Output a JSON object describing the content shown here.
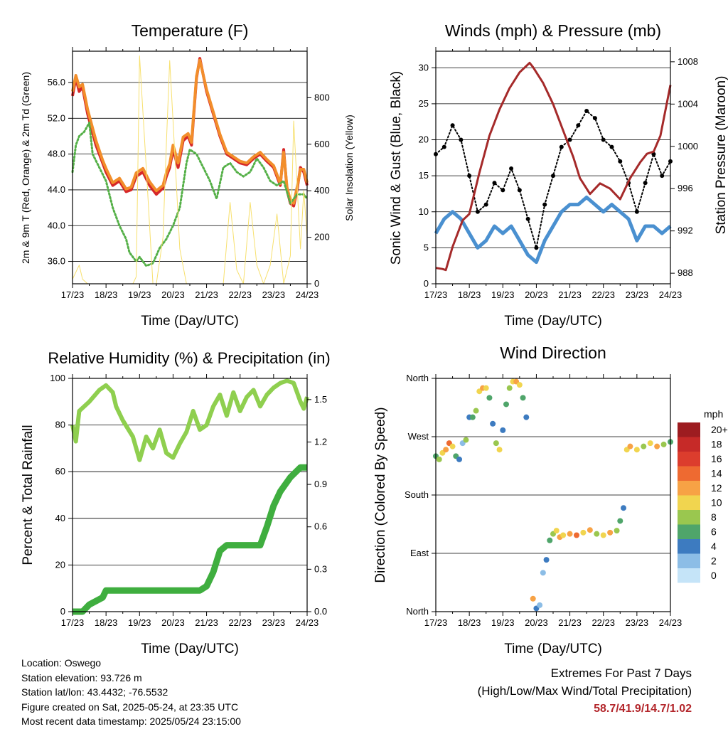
{
  "panels": {
    "temperature": {
      "title": "Temperature (F)",
      "ylabel_left": "2m & 9m T (Red, Orange) & 2m Td (Green)",
      "ylabel_right": "Solar Insolation (Yellow)",
      "xlabel": "Time (Day/UTC)"
    },
    "winds": {
      "title": "Winds (mph) & Pressure (mb)",
      "ylabel_left": "Sonic Wind & Gust (Blue, Black)",
      "ylabel_right": "Station Pressure (Maroon)",
      "xlabel": "Time (Day/UTC)"
    },
    "humidity": {
      "title": "Relative Humidity (%) & Precipitation (in)",
      "ylabel_left": "Percent & Total Rainfall",
      "xlabel": "Time (Day/UTC)"
    },
    "direction": {
      "title": "Wind Direction",
      "ylabel_left": "Direction (Colored By Speed)",
      "xlabel": "Time (Day/UTC)",
      "colorbar_title": "mph",
      "colorbar_labels": [
        "20+",
        "18",
        "16",
        "14",
        "12",
        "10",
        "8",
        "6",
        "4",
        "2",
        "0"
      ],
      "colorbar_colors": [
        "#9d1c20",
        "#c62a28",
        "#dc3d2d",
        "#ee6a31",
        "#f7a245",
        "#f1d54f",
        "#9ac74f",
        "#4fa56a",
        "#3d7bc0",
        "#8cbde6",
        "#c5e4f8"
      ]
    }
  },
  "info": {
    "location": "Location: Oswego",
    "elevation": "Station elevation: 93.726 m",
    "latlon": "Station lat/lon: 43.4432; -76.5532",
    "created": "Figure created on Sat, 2025-05-24, at 23:35 UTC",
    "recent": "Most recent data timestamp: 2025/05/24 23:15:00"
  },
  "extremes": {
    "title": "Extremes For Past 7 Days",
    "subtitle": "(High/Low/Max Wind/Total Precipitation)",
    "values": "58.7/41.9/14.7/1.02"
  },
  "chart_data": [
    {
      "type": "line",
      "title": "Temperature (F)",
      "xlabel": "Time (Day/UTC)",
      "x_ticks": [
        "17/23",
        "18/23",
        "19/23",
        "20/23",
        "21/23",
        "22/23",
        "23/23",
        "24/23"
      ],
      "xlim": [
        0,
        7
      ],
      "ylim": [
        33.5,
        59.5
      ],
      "y_ticks": [
        "36.0",
        "40.0",
        "44.0",
        "48.0",
        "52.0",
        "56.0"
      ],
      "y2lim": [
        0,
        1000
      ],
      "y2_ticks": [
        "0",
        "200",
        "400",
        "600",
        "800"
      ],
      "grid": "horizontal",
      "series": [
        {
          "color": "#d62728",
          "axis": "left",
          "x": [
            0,
            0.1,
            0.2,
            0.3,
            0.45,
            0.7,
            0.9,
            1.0,
            1.2,
            1.4,
            1.6,
            1.75,
            1.9,
            2.1,
            2.3,
            2.5,
            2.7,
            2.8,
            2.9,
            3.0,
            3.15,
            3.3,
            3.45,
            3.55,
            3.6,
            3.7,
            3.8,
            4.0,
            4.2,
            4.4,
            4.6,
            4.8,
            5.0,
            5.2,
            5.4,
            5.6,
            5.8,
            6.0,
            6.2,
            6.3,
            6.4,
            6.5,
            6.6,
            6.7,
            6.8,
            6.9,
            7.0
          ],
          "y": [
            54.5,
            56.5,
            55.0,
            55.5,
            52.5,
            49.0,
            47.0,
            46.0,
            44.5,
            45.0,
            43.8,
            44.0,
            45.5,
            46.0,
            44.5,
            43.5,
            44.2,
            45.5,
            46.5,
            48.5,
            46.5,
            49.5,
            50.0,
            49.0,
            51.5,
            56.5,
            58.7,
            55.0,
            52.5,
            50.0,
            48.0,
            47.5,
            47.0,
            46.8,
            47.5,
            48.0,
            47.2,
            46.5,
            44.5,
            48.5,
            44.0,
            42.5,
            42.2,
            44.0,
            46.5,
            46.0,
            44.5
          ]
        },
        {
          "color": "#f28e2b",
          "axis": "left",
          "x": [
            0,
            0.1,
            0.2,
            0.3,
            0.45,
            0.7,
            0.9,
            1.0,
            1.2,
            1.4,
            1.6,
            1.75,
            1.9,
            2.1,
            2.3,
            2.5,
            2.7,
            2.8,
            2.9,
            3.0,
            3.15,
            3.3,
            3.45,
            3.55,
            3.6,
            3.7,
            3.8,
            4.0,
            4.2,
            4.4,
            4.6,
            4.8,
            5.0,
            5.2,
            5.4,
            5.6,
            5.8,
            6.0,
            6.2,
            6.3,
            6.4,
            6.5,
            6.6,
            6.7,
            6.8,
            6.9,
            7.0
          ],
          "y": [
            55.0,
            56.8,
            55.5,
            55.8,
            53.0,
            49.5,
            47.3,
            46.4,
            44.8,
            45.3,
            44.1,
            44.3,
            45.9,
            46.4,
            44.9,
            43.9,
            44.5,
            45.9,
            46.9,
            49.0,
            47.0,
            49.9,
            50.3,
            49.3,
            51.8,
            56.7,
            58.5,
            55.2,
            52.7,
            50.2,
            48.2,
            47.7,
            47.2,
            47.0,
            47.7,
            48.2,
            47.4,
            46.7,
            44.7,
            48.2,
            44.3,
            42.8,
            42.5,
            44.3,
            46.3,
            46.3,
            44.8
          ]
        },
        {
          "color": "#55b048",
          "axis": "left",
          "x": [
            0,
            0.1,
            0.2,
            0.35,
            0.5,
            0.6,
            0.8,
            1.0,
            1.2,
            1.4,
            1.6,
            1.7,
            1.9,
            2.0,
            2.2,
            2.4,
            2.6,
            2.8,
            3.0,
            3.2,
            3.4,
            3.5,
            3.7,
            3.9,
            4.1,
            4.3,
            4.5,
            4.7,
            4.9,
            5.1,
            5.3,
            5.5,
            5.7,
            5.9,
            6.1,
            6.3,
            6.5,
            6.7,
            6.9,
            7.0
          ],
          "y": [
            46.0,
            49.0,
            50.0,
            50.5,
            51.5,
            48.0,
            46.5,
            45.0,
            42.0,
            40.0,
            38.5,
            37.0,
            36.0,
            36.5,
            35.5,
            35.8,
            37.5,
            38.5,
            40.0,
            42.0,
            47.0,
            48.5,
            48.0,
            46.5,
            45.0,
            43.0,
            46.5,
            47.0,
            46.0,
            45.5,
            46.0,
            47.5,
            46.5,
            45.0,
            44.5,
            45.0,
            42.5,
            43.5,
            43.5,
            43.0
          ]
        },
        {
          "color": "#f7e06e",
          "axis": "right",
          "x": [
            0,
            0.2,
            0.3,
            0.45,
            0.6,
            0.8,
            1.0,
            1.2,
            1.4,
            1.6,
            1.8,
            1.9,
            2.0,
            2.2,
            2.4,
            2.5,
            2.7,
            2.8,
            2.9,
            3.0,
            3.2,
            3.4,
            3.6,
            3.7,
            3.9,
            4.1,
            4.3,
            4.5,
            4.7,
            4.9,
            5.1,
            5.3,
            5.5,
            5.7,
            5.9,
            6.1,
            6.3,
            6.5,
            6.6,
            6.8,
            6.9,
            7.0
          ],
          "y": [
            20,
            80,
            20,
            0,
            0,
            0,
            0,
            0,
            0,
            0,
            0,
            30,
            980,
            500,
            0,
            0,
            200,
            600,
            960,
            700,
            150,
            0,
            0,
            0,
            0,
            0,
            0,
            0,
            350,
            60,
            0,
            350,
            80,
            0,
            80,
            300,
            0,
            120,
            700,
            150,
            400,
            200
          ]
        }
      ]
    },
    {
      "type": "line",
      "title": "Winds (mph) & Pressure (mb)",
      "xlabel": "Time (Day/UTC)",
      "x_ticks": [
        "17/23",
        "18/23",
        "19/23",
        "20/23",
        "21/23",
        "22/23",
        "23/23",
        "24/23"
      ],
      "xlim": [
        0,
        7
      ],
      "ylim": [
        0,
        32.3
      ],
      "y_ticks": [
        "0",
        "5",
        "10",
        "15",
        "20",
        "25",
        "30"
      ],
      "y2lim": [
        987,
        1009
      ],
      "y2_ticks": [
        "988",
        "992",
        "996",
        "1000",
        "1004",
        "1008"
      ],
      "grid": "horizontal",
      "series": [
        {
          "color": "#4a90d0",
          "axis": "left",
          "x": [
            0,
            0.25,
            0.5,
            0.75,
            1.0,
            1.25,
            1.5,
            1.75,
            2.0,
            2.25,
            2.5,
            2.75,
            3.0,
            3.25,
            3.5,
            3.75,
            4.0,
            4.25,
            4.5,
            4.75,
            5.0,
            5.25,
            5.5,
            5.75,
            6.0,
            6.25,
            6.5,
            6.75,
            7.0
          ],
          "y": [
            7,
            9,
            10,
            9,
            7,
            5,
            6,
            8,
            7,
            8,
            6,
            4,
            3,
            6,
            8,
            10,
            11,
            11,
            12,
            11,
            10,
            11,
            10,
            9,
            6,
            8,
            8,
            7,
            8
          ]
        },
        {
          "color": "#000000",
          "axis": "left",
          "x": [
            0,
            0.25,
            0.5,
            0.75,
            1.0,
            1.25,
            1.5,
            1.75,
            2.0,
            2.25,
            2.5,
            2.75,
            3.0,
            3.25,
            3.5,
            3.75,
            4.0,
            4.25,
            4.5,
            4.75,
            5.0,
            5.25,
            5.5,
            5.75,
            6.0,
            6.25,
            6.5,
            6.75,
            7.0
          ],
          "y": [
            18,
            19,
            22,
            20,
            15,
            10,
            11,
            14,
            13,
            16,
            13,
            9,
            5,
            11,
            15,
            19,
            20,
            22,
            24,
            23,
            20,
            19,
            17,
            14,
            10,
            14,
            18,
            15,
            17
          ]
        },
        {
          "color": "#a52a2a",
          "axis": "right",
          "x": [
            0,
            0.2,
            0.3,
            0.5,
            0.8,
            1.0,
            1.3,
            1.6,
            1.9,
            2.2,
            2.5,
            2.8,
            2.9,
            3.2,
            3.5,
            3.8,
            4.1,
            4.3,
            4.6,
            4.9,
            5.2,
            5.5,
            5.8,
            6.1,
            6.3,
            6.5,
            6.7,
            7.0
          ],
          "y": [
            988.5,
            988.4,
            988.3,
            990.5,
            993.0,
            993.6,
            997.5,
            1001.0,
            1003.5,
            1005.5,
            1007.0,
            1007.9,
            1007.5,
            1006.0,
            1004.0,
            1001.5,
            999.0,
            997.0,
            995.5,
            996.5,
            996.0,
            995.0,
            997.0,
            998.5,
            999.3,
            999.5,
            1001.0,
            1005.8
          ]
        }
      ]
    },
    {
      "type": "line",
      "title": "Relative Humidity (%) & Precipitation (in)",
      "xlabel": "Time (Day/UTC)",
      "x_ticks": [
        "17/23",
        "18/23",
        "19/23",
        "20/23",
        "21/23",
        "22/23",
        "23/23",
        "24/23"
      ],
      "xlim": [
        0,
        7
      ],
      "ylim": [
        0,
        100
      ],
      "y_ticks": [
        "0",
        "20",
        "40",
        "60",
        "80",
        "100"
      ],
      "y2lim": [
        0,
        1.65
      ],
      "y2_ticks": [
        "0.0",
        "0.3",
        "0.6",
        "0.9",
        "1.2",
        "1.5"
      ],
      "grid": "horizontal",
      "series": [
        {
          "color": "#8fcf4f",
          "axis": "left",
          "x": [
            0,
            0.1,
            0.2,
            0.5,
            0.8,
            1.0,
            1.2,
            1.3,
            1.5,
            1.8,
            2.0,
            2.2,
            2.4,
            2.6,
            2.8,
            3.0,
            3.2,
            3.4,
            3.6,
            3.8,
            4.0,
            4.2,
            4.4,
            4.6,
            4.8,
            5.0,
            5.2,
            5.4,
            5.6,
            5.8,
            6.0,
            6.2,
            6.4,
            6.6,
            6.8,
            6.9,
            7.0
          ],
          "y": [
            80,
            73,
            86,
            90,
            95,
            97,
            94,
            88,
            82,
            75,
            65,
            75,
            70,
            78,
            68,
            66,
            72,
            77,
            86,
            78,
            80,
            88,
            93,
            84,
            94,
            86,
            92,
            95,
            88,
            93,
            96,
            98,
            99,
            98,
            90,
            87,
            92
          ]
        },
        {
          "color": "#3fae3f",
          "axis": "right",
          "x": [
            0,
            0.3,
            0.5,
            0.9,
            1.0,
            1.5,
            2.0,
            3.0,
            3.8,
            4.0,
            4.2,
            4.4,
            4.6,
            5.0,
            5.6,
            5.8,
            6.0,
            6.2,
            6.5,
            6.8,
            7.0
          ],
          "y": [
            0.0,
            0.0,
            0.05,
            0.1,
            0.15,
            0.15,
            0.15,
            0.15,
            0.15,
            0.18,
            0.28,
            0.43,
            0.47,
            0.47,
            0.47,
            0.6,
            0.75,
            0.85,
            0.95,
            1.02,
            1.02
          ]
        }
      ]
    },
    {
      "type": "scatter",
      "title": "Wind Direction",
      "xlabel": "Time (Day/UTC)",
      "x_ticks": [
        "17/23",
        "18/23",
        "19/23",
        "20/23",
        "21/23",
        "22/23",
        "23/23",
        "24/23"
      ],
      "xlim": [
        0,
        7
      ],
      "ylim": [
        0,
        360
      ],
      "y_ticks": [
        "North",
        "East",
        "South",
        "West",
        "North"
      ],
      "grid": "horizontal",
      "points": {
        "x": [
          0,
          0.1,
          0.2,
          0.3,
          0.4,
          0.5,
          0.6,
          0.7,
          0.8,
          0.9,
          1.0,
          1.1,
          1.2,
          1.3,
          1.4,
          1.5,
          1.6,
          1.7,
          1.8,
          1.9,
          2.0,
          2.1,
          2.2,
          2.3,
          2.4,
          2.5,
          2.6,
          2.7,
          2.9,
          3.0,
          3.1,
          3.2,
          3.3,
          3.4,
          3.5,
          3.6,
          3.7,
          3.8,
          4.0,
          4.2,
          4.4,
          4.6,
          4.8,
          5.0,
          5.2,
          5.4,
          5.5,
          5.6,
          5.7,
          5.8,
          6.0,
          6.2,
          6.4,
          6.6,
          6.8,
          7.0
        ],
        "direction": [
          240,
          235,
          245,
          250,
          260,
          255,
          240,
          235,
          260,
          265,
          300,
          300,
          310,
          340,
          345,
          345,
          330,
          290,
          260,
          250,
          280,
          320,
          345,
          355,
          355,
          350,
          330,
          300,
          20,
          5,
          10,
          60,
          80,
          110,
          120,
          125,
          115,
          118,
          120,
          118,
          122,
          126,
          120,
          118,
          122,
          125,
          140,
          160,
          250,
          255,
          250,
          255,
          260,
          255,
          258,
          262
        ],
        "speed": [
          6,
          8,
          10,
          12,
          14,
          10,
          6,
          4,
          2,
          8,
          4,
          6,
          8,
          10,
          12,
          10,
          6,
          4,
          8,
          10,
          4,
          6,
          8,
          10,
          12,
          10,
          6,
          4,
          12,
          4,
          2,
          2,
          4,
          6,
          8,
          10,
          12,
          10,
          12,
          14,
          10,
          12,
          8,
          10,
          12,
          8,
          6,
          4,
          10,
          12,
          10,
          8,
          10,
          12,
          8,
          6
        ]
      }
    }
  ]
}
